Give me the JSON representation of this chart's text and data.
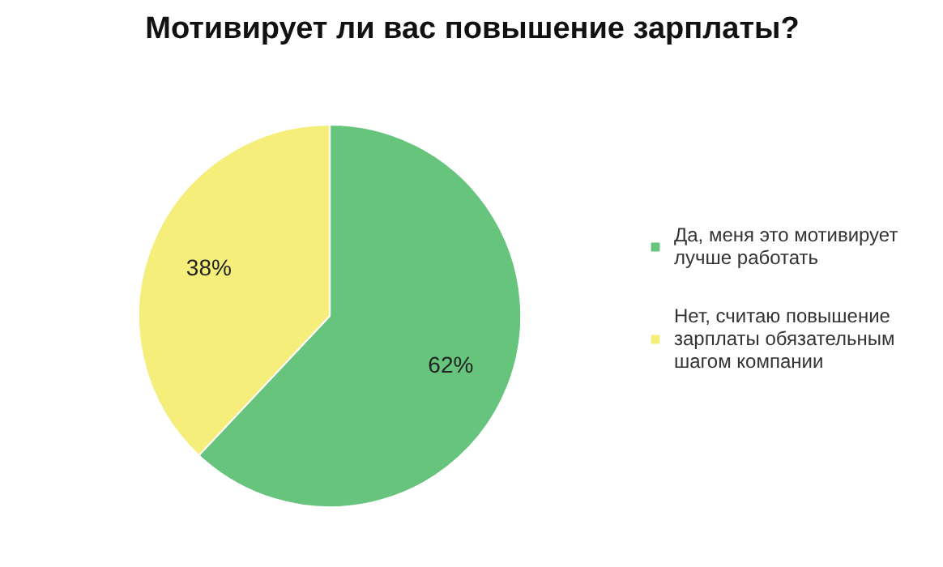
{
  "chart_data": {
    "type": "pie",
    "title": "Мотивирует ли вас повышение зарплаты?",
    "categories": [
      "Да, меня это мотивирует лучше работать",
      "Нет, считаю повышение зарплаты обязательным шагом компании"
    ],
    "values": [
      62,
      38
    ],
    "colors": [
      "#66c47c",
      "#f6ee7a"
    ],
    "value_labels": [
      "62%",
      "38%"
    ],
    "legend": "right"
  }
}
